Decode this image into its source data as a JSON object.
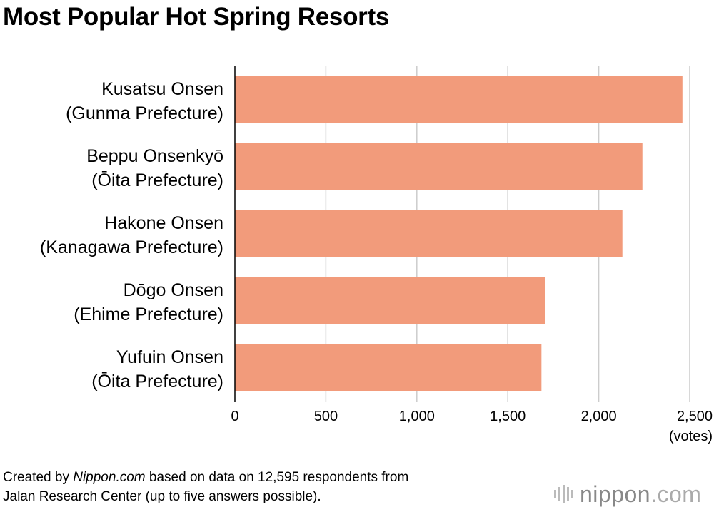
{
  "chart_data": {
    "type": "bar",
    "orientation": "horizontal",
    "title": "Most Popular Hot Spring Resorts",
    "categories": [
      [
        "Kusatsu Onsen",
        "(Gunma Prefecture)"
      ],
      [
        "Beppu Onsenkyō",
        "(Ōita Prefecture)"
      ],
      [
        "Hakone Onsen",
        "(Kanagawa Prefecture)"
      ],
      [
        "Dōgo Onsen",
        "(Ehime Prefecture)"
      ],
      [
        "Yufuin Onsen",
        "(Ōita Prefecture)"
      ]
    ],
    "values": [
      2460,
      2240,
      2130,
      1705,
      1685
    ],
    "xlim": [
      0,
      2500
    ],
    "xticks": [
      0,
      500,
      1000,
      1500,
      2000,
      2500
    ],
    "xtick_labels": [
      "0",
      "500",
      "1,000",
      "1,500",
      "2,000",
      "2,500"
    ],
    "xunit": "(votes)",
    "grid": true,
    "bar_color": "#f29b7b"
  },
  "footnote": {
    "prefix": "Created by ",
    "source_name": "Nippon.com",
    "line1_rest": " based on data on 12,595 respondents from",
    "line2": "Jalan Research Center (up to five answers possible)."
  },
  "logo": {
    "text_main": "nippon",
    "text_suffix": ".com",
    "icon": "nippon-logo-bars-icon"
  }
}
